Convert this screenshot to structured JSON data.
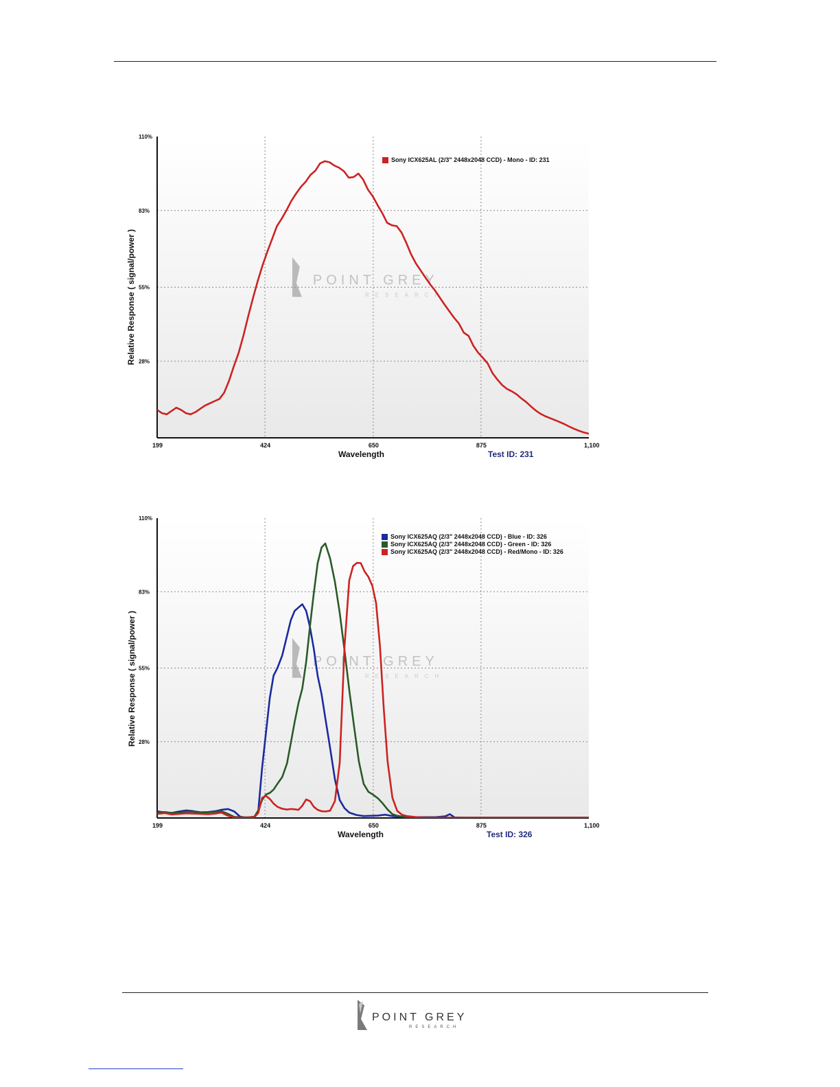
{
  "footer": {
    "logo_word": "POINT GREY",
    "logo_sub": "RESEARCH"
  },
  "charts": [
    {
      "legend": [
        {
          "label": "Sony ICX625AL (2/3\" 2448x2048 CCD) - Mono - ID: 231",
          "color": "#cc2222"
        }
      ],
      "test_id": "Test ID: 231",
      "xlabel": "Wavelength",
      "ylabel": "Relative Response ( signal/power )",
      "watermark_word": "POINT GREY",
      "watermark_sub": "RESEARCH",
      "yticks": [
        "110%",
        "83%",
        "55%",
        "28%"
      ],
      "xticks": [
        "199",
        "424",
        "650",
        "875",
        "1,100"
      ]
    },
    {
      "legend": [
        {
          "label": "Sony ICX625AQ (2/3\" 2448x2048 CCD) - Blue  - ID: 326",
          "color": "#1a2aa0"
        },
        {
          "label": "Sony ICX625AQ (2/3\" 2448x2048 CCD) - Green  - ID: 326",
          "color": "#2a5a28"
        },
        {
          "label": "Sony ICX625AQ (2/3\" 2448x2048 CCD) - Red/Mono - ID: 326",
          "color": "#cc2222"
        }
      ],
      "test_id": "Test ID: 326",
      "xlabel": "Wavelength",
      "ylabel": "Relative Response ( signal/power )",
      "watermark_word": "POINT GREY",
      "watermark_sub": "RESEARCH",
      "yticks": [
        "110%",
        "83%",
        "55%",
        "28%"
      ],
      "xticks": [
        "199",
        "424",
        "650",
        "875",
        "1,100"
      ]
    }
  ],
  "chart_data": [
    {
      "type": "line",
      "xlabel": "Wavelength",
      "ylabel": "Relative Response ( signal/power )",
      "xlim": [
        199,
        1100
      ],
      "ylim": [
        0,
        110
      ],
      "xticks": [
        199,
        424,
        650,
        875,
        1100
      ],
      "yticks": [
        28,
        55,
        83,
        110
      ],
      "grid": true,
      "legend_position": "top-right",
      "series": [
        {
          "name": "Sony ICX625AL (2/3\" 2448x2048 CCD) - Mono - ID: 231",
          "color": "#cc2222",
          "x": [
            199,
            209,
            219,
            229,
            239,
            249,
            259,
            269,
            279,
            289,
            299,
            309,
            319,
            329,
            339,
            349,
            359,
            369,
            379,
            389,
            399,
            409,
            419,
            429,
            439,
            449,
            459,
            469,
            479,
            489,
            499,
            509,
            519,
            529,
            539,
            549,
            559,
            569,
            579,
            589,
            599,
            609,
            619,
            629,
            639,
            649,
            659,
            669,
            679,
            689,
            699,
            709,
            719,
            729,
            739,
            749,
            759,
            769,
            779,
            789,
            799,
            809,
            819,
            829,
            839,
            849,
            859,
            869,
            879,
            889,
            899,
            909,
            919,
            929,
            939,
            949,
            959,
            969,
            979,
            989,
            999,
            1009,
            1019,
            1029,
            1039,
            1049,
            1059,
            1069,
            1079,
            1089,
            1100
          ],
          "y": [
            10.2,
            9.0,
            8.6,
            9.8,
            11.0,
            10.2,
            9.0,
            8.6,
            9.4,
            10.6,
            11.8,
            12.6,
            13.4,
            14.2,
            16.5,
            20.8,
            26.1,
            31.0,
            37.3,
            44.3,
            51.0,
            57.3,
            63.0,
            68.0,
            72.6,
            77.3,
            80.0,
            83.1,
            86.5,
            89.2,
            91.6,
            93.5,
            96.0,
            97.5,
            100.2,
            101.0,
            100.6,
            99.4,
            98.6,
            97.3,
            95.0,
            95.2,
            96.5,
            94.3,
            90.6,
            88.2,
            85.0,
            82.0,
            78.5,
            77.6,
            77.3,
            75.0,
            71.2,
            67.0,
            63.7,
            61.1,
            58.5,
            56.0,
            53.8,
            51.2,
            48.6,
            46.2,
            43.8,
            41.7,
            38.4,
            37.2,
            33.6,
            31.1,
            29.2,
            27.1,
            23.6,
            21.3,
            19.3,
            17.9,
            17.0,
            15.9,
            14.4,
            13.1,
            11.5,
            10.0,
            8.8,
            7.9,
            7.2,
            6.5,
            5.8,
            5.0,
            4.1,
            3.3,
            2.6,
            2.0,
            1.5
          ]
        }
      ]
    },
    {
      "type": "line",
      "xlabel": "Wavelength",
      "ylabel": "Relative Response ( signal/power )",
      "xlim": [
        199,
        1100
      ],
      "ylim": [
        0,
        110
      ],
      "xticks": [
        199,
        424,
        650,
        875,
        1100
      ],
      "yticks": [
        28,
        55,
        83,
        110
      ],
      "grid": true,
      "legend_position": "top-right",
      "series": [
        {
          "name": "Sony ICX625AQ (2/3\" 2448x2048 CCD) - Blue  - ID: 326",
          "color": "#1a2aa0",
          "x": [
            199,
            215,
            230,
            245,
            260,
            275,
            290,
            305,
            320,
            333,
            347,
            360,
            372,
            382,
            392,
            402,
            410,
            418,
            426,
            434,
            442,
            450,
            460,
            470,
            478,
            486,
            494,
            502,
            510,
            518,
            526,
            534,
            542,
            550,
            560,
            570,
            580,
            590,
            600,
            615,
            630,
            645,
            660,
            675,
            690,
            720,
            750,
            780,
            800,
            810,
            820,
            840,
            870,
            900,
            950,
            1000,
            1050,
            1100
          ],
          "y": [
            2.5,
            2.0,
            1.9,
            2.4,
            2.8,
            2.5,
            2.1,
            2.2,
            2.5,
            3.0,
            3.3,
            2.4,
            0.5,
            0.2,
            0.2,
            0.3,
            2.5,
            18.3,
            31.2,
            44.0,
            52.2,
            55.0,
            59.6,
            66.8,
            72.6,
            76.0,
            77.2,
            78.4,
            76.0,
            70.0,
            62.0,
            52.1,
            45.5,
            36.7,
            25.7,
            14.2,
            6.6,
            3.6,
            2.0,
            1.1,
            0.7,
            0.8,
            0.9,
            1.2,
            0.7,
            0.3,
            0.3,
            0.3,
            0.6,
            1.4,
            0.2,
            0.1,
            0.1,
            0.1,
            0.1,
            0.1,
            0.1,
            0.1
          ]
        },
        {
          "name": "Sony ICX625AQ (2/3\" 2448x2048 CCD) - Green  - ID: 326",
          "color": "#2a5a28",
          "x": [
            199,
            215,
            230,
            245,
            260,
            275,
            290,
            305,
            320,
            333,
            347,
            360,
            372,
            382,
            392,
            402,
            410,
            418,
            426,
            434,
            442,
            450,
            460,
            470,
            478,
            486,
            494,
            502,
            510,
            518,
            526,
            534,
            542,
            550,
            560,
            570,
            580,
            590,
            600,
            610,
            620,
            630,
            640,
            650,
            660,
            670,
            680,
            690,
            700,
            720,
            750,
            800,
            850,
            900,
            1000,
            1100
          ],
          "y": [
            2.0,
            2.2,
            1.8,
            1.9,
            2.4,
            2.3,
            2.0,
            2.1,
            2.3,
            2.5,
            1.5,
            0.4,
            0.3,
            0.2,
            0.3,
            0.5,
            2.8,
            6.6,
            8.6,
            9.2,
            10.4,
            12.5,
            15.0,
            20.0,
            27.6,
            35.3,
            42.1,
            47.5,
            57.2,
            70.4,
            82.6,
            93.5,
            99.2,
            100.7,
            95.2,
            86.7,
            75.3,
            61.5,
            47.0,
            33.6,
            20.8,
            12.5,
            9.6,
            8.5,
            7.2,
            5.3,
            3.1,
            1.4,
            0.8,
            0.3,
            0.2,
            0.1,
            0.1,
            0.1,
            0.1,
            0.1
          ]
        },
        {
          "name": "Sony ICX625AQ (2/3\" 2448x2048 CCD) - Red/Mono - ID: 326",
          "color": "#cc2222",
          "x": [
            199,
            215,
            230,
            245,
            260,
            275,
            290,
            305,
            320,
            333,
            347,
            360,
            372,
            382,
            392,
            402,
            410,
            418,
            426,
            434,
            442,
            450,
            460,
            470,
            478,
            486,
            494,
            502,
            510,
            518,
            526,
            534,
            542,
            550,
            560,
            570,
            580,
            590,
            600,
            608,
            616,
            624,
            632,
            640,
            648,
            656,
            664,
            672,
            680,
            690,
            700,
            710,
            720,
            740,
            760,
            800,
            850,
            900,
            1000,
            1100
          ],
          "y": [
            1.5,
            1.8,
            1.3,
            1.5,
            1.7,
            1.6,
            1.5,
            1.4,
            1.6,
            2.0,
            0.8,
            0.2,
            0.2,
            0.1,
            0.2,
            0.3,
            1.8,
            7.4,
            8.1,
            7.0,
            5.3,
            4.1,
            3.4,
            3.1,
            3.3,
            3.2,
            3.0,
            4.5,
            6.8,
            6.2,
            4.1,
            3.0,
            2.5,
            2.4,
            2.7,
            6.2,
            20.2,
            62.8,
            87.2,
            92.4,
            93.6,
            93.5,
            90.4,
            88.4,
            85.2,
            78.8,
            63.2,
            40.1,
            20.7,
            7.4,
            2.6,
            1.2,
            0.7,
            0.3,
            0.1,
            0.1,
            0.1,
            0.1,
            0.1,
            0.1
          ]
        }
      ]
    }
  ]
}
